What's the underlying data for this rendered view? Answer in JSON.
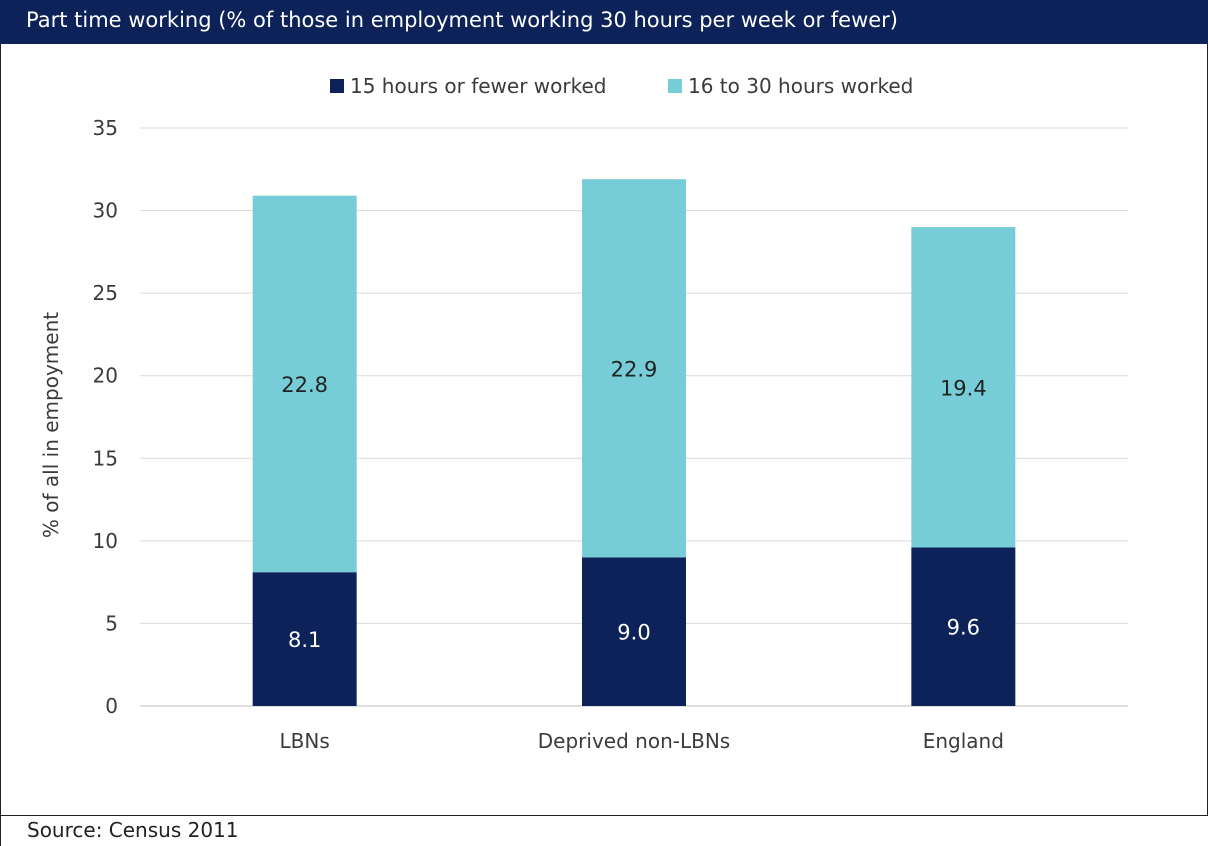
{
  "header": {
    "title": "Part time working (% of those in employment working 30 hours per week or fewer)"
  },
  "footer": {
    "source": "Source: Census 2011"
  },
  "colors": {
    "title_bar": "#0c2258",
    "series_1": "#0c2258",
    "series_2": "#76cdd7",
    "grid": "#d9d9d9"
  },
  "chart_data": {
    "type": "bar",
    "stacked": true,
    "title": "",
    "xlabel": "",
    "ylabel": "% of all in empoyment",
    "ylim": [
      0,
      35
    ],
    "yticks": [
      "0",
      "5",
      "10",
      "15",
      "20",
      "25",
      "30",
      "35"
    ],
    "grid": true,
    "legend_position": "top",
    "categories": [
      "LBNs",
      "Deprived non-LBNs",
      "England"
    ],
    "series": [
      {
        "name": "15 hours or fewer worked",
        "values": [
          8.1,
          9.0,
          9.6
        ],
        "labels": [
          "8.1",
          "9.0",
          "9.6"
        ]
      },
      {
        "name": "16 to 30 hours worked",
        "values": [
          22.8,
          22.9,
          19.4
        ],
        "labels": [
          "22.8",
          "22.9",
          "19.4"
        ]
      }
    ]
  }
}
